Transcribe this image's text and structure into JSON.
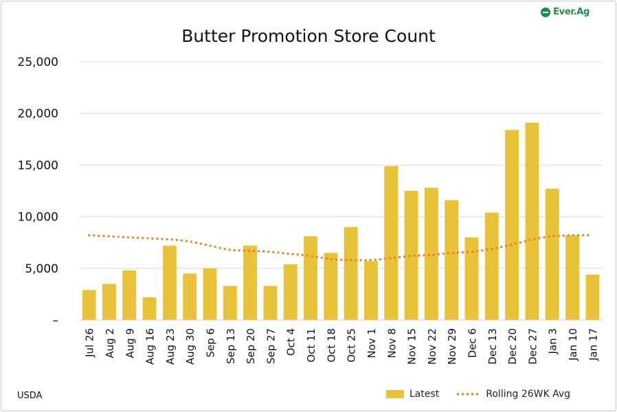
{
  "brand": {
    "logo_text": "Ever.Ag",
    "logo_color": "#1f8a4c"
  },
  "source": "USDA",
  "chart_data": {
    "type": "bar",
    "title": "Butter Promotion Store Count",
    "xlabel": "",
    "ylabel": "",
    "ylim": [
      0,
      25000
    ],
    "yticks": [
      "–",
      "5,000",
      "10,000",
      "15,000",
      "20,000",
      "25,000"
    ],
    "grid": true,
    "legend_position": "bottom-right",
    "categories": [
      "Jul 26",
      "Aug 2",
      "Aug 9",
      "Aug 16",
      "Aug 23",
      "Aug 30",
      "Sep 6",
      "Sep 13",
      "Sep 20",
      "Sep 27",
      "Oct 4",
      "Oct 11",
      "Oct 18",
      "Oct 25",
      "Nov 1",
      "Nov 8",
      "Nov 15",
      "Nov 22",
      "Nov 29",
      "Dec 6",
      "Dec 13",
      "Dec 20",
      "Dec 27",
      "Jan 3",
      "Jan 10",
      "Jan 17"
    ],
    "series": [
      {
        "name": "Latest",
        "type": "bar",
        "color": "#e8c33a",
        "values": [
          2900,
          3500,
          4800,
          2200,
          7200,
          4500,
          5000,
          3300,
          7200,
          3300,
          5400,
          8100,
          6500,
          9000,
          5700,
          14900,
          12500,
          12800,
          11600,
          8000,
          10400,
          18400,
          19100,
          12700,
          8200,
          4400
        ]
      },
      {
        "name": "Rolling 26WK Avg",
        "type": "line",
        "style": "dotted",
        "color": "#e67e22",
        "values": [
          8200,
          8100,
          8000,
          7900,
          7800,
          7600,
          7200,
          6800,
          6700,
          6600,
          6400,
          6200,
          5900,
          5800,
          5800,
          6000,
          6200,
          6300,
          6500,
          6600,
          6900,
          7300,
          7800,
          8100,
          8200,
          8200
        ]
      }
    ]
  }
}
